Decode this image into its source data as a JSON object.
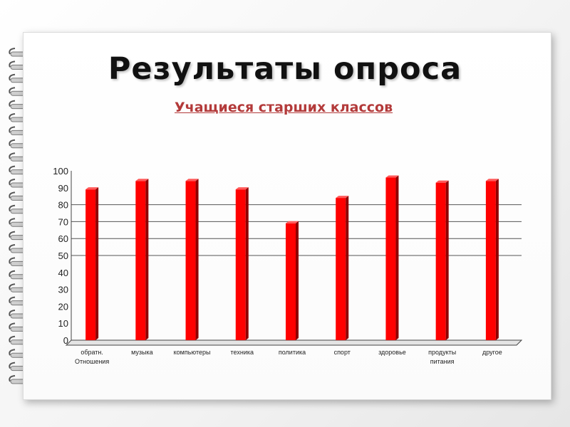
{
  "slide": {
    "title": "Результаты опроса",
    "subtitle": "Учащиеся старших классов"
  },
  "chart_data": {
    "type": "bar",
    "categories": [
      [
        "обратн.",
        "Отношения"
      ],
      [
        "музыка"
      ],
      [
        "компьютеры"
      ],
      [
        "техника"
      ],
      [
        "политика"
      ],
      [
        "спорт"
      ],
      [
        "здоровье"
      ],
      [
        "продукты",
        "питания"
      ],
      [
        "другое"
      ]
    ],
    "values": [
      89,
      94,
      94,
      89,
      69,
      84,
      96,
      93,
      94
    ],
    "ylim": [
      0,
      100
    ],
    "yticks": [
      0,
      10,
      20,
      30,
      40,
      50,
      60,
      70,
      80,
      90,
      100
    ],
    "gridlines": [
      50,
      60,
      70,
      80
    ],
    "bar_color": "#ff0000",
    "bar_side_color": "#8f0000",
    "legend": "none"
  }
}
